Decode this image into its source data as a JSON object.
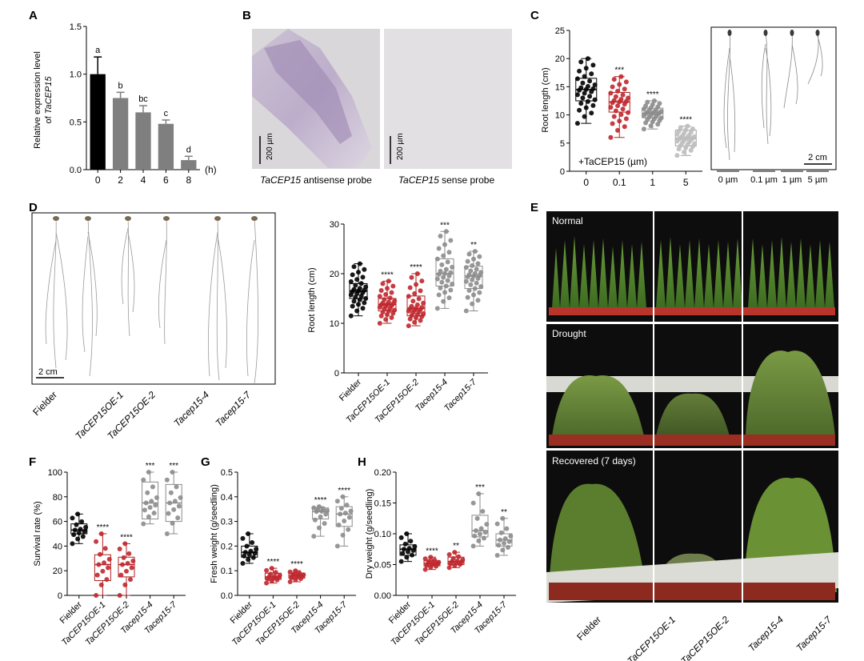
{
  "panels": {
    "A": {
      "letter": "A",
      "ylabel_line1": "Relative expression level",
      "ylabel_prefix": "of ",
      "ylabel_gene": "TaCEP15",
      "xunit": "(h)",
      "yticks": [
        "0.0",
        "0.5",
        "1.0",
        "1.5"
      ],
      "chart_data": {
        "type": "bar",
        "categories": [
          "0",
          "2",
          "4",
          "6",
          "8"
        ],
        "values": [
          1.0,
          0.75,
          0.6,
          0.48,
          0.1
        ],
        "errors": [
          0.18,
          0.06,
          0.07,
          0.04,
          0.04
        ],
        "sig": [
          "a",
          "b",
          "bc",
          "c",
          "d"
        ],
        "colors": [
          "#000000",
          "#7f7f7f",
          "#7f7f7f",
          "#7f7f7f",
          "#7f7f7f"
        ],
        "ylim": [
          0,
          1.5
        ]
      }
    },
    "B": {
      "letter": "B",
      "scale_label": "200 µm",
      "left_caption_gene": "TaCEP15",
      "left_caption_rest": " antisense probe",
      "right_caption_gene": "TaCEP15",
      "right_caption_rest": " sense probe"
    },
    "C": {
      "letter": "C",
      "ylabel": "Root length (cm)",
      "treatment": "+TaCEP15 (µm)",
      "yticks": [
        "0",
        "5",
        "10",
        "15",
        "20",
        "25"
      ],
      "photo_scale": "2 cm",
      "photo_labels": [
        "0 µm",
        "0.1 µm",
        "1 µm",
        "5 µm"
      ],
      "chart_data": {
        "type": "box",
        "categories": [
          "0",
          "0.1",
          "1",
          "5"
        ],
        "boxes": [
          {
            "min": 8.5,
            "q1": 12.5,
            "median": 14.5,
            "q3": 16.5,
            "max": 20,
            "sig": "",
            "color": "#000000",
            "fill": "#000000"
          },
          {
            "min": 6,
            "q1": 10.5,
            "median": 12.3,
            "q3": 14,
            "max": 16.8,
            "sig": "***",
            "color": "#b22222",
            "fill": "#c0272d"
          },
          {
            "min": 7.5,
            "q1": 9.5,
            "median": 10.3,
            "q3": 11.2,
            "max": 12.5,
            "sig": "****",
            "color": "#8c8c8c",
            "fill": "#8c8c8c"
          },
          {
            "min": 2.8,
            "q1": 4.5,
            "median": 5.8,
            "q3": 7.3,
            "max": 8,
            "sig": "****",
            "color": "#a0a0a0",
            "fill": "#bdbdbd"
          }
        ],
        "ylim": [
          0,
          25
        ]
      }
    },
    "D": {
      "letter": "D",
      "ylabel": "Root length (cm)",
      "yticks": [
        "0",
        "10",
        "20",
        "30"
      ],
      "photo_scale": "2 cm",
      "photo_labels": [
        "Fielder",
        "TaCEP15OE-1",
        "TaCEP15OE-2",
        "Tacep15-4",
        "Tacep15-7"
      ],
      "chart_data": {
        "type": "box",
        "categories": [
          "Fielder",
          "TaCEP15OE-1",
          "TaCEP15OE-2",
          "Tacep15-4",
          "Tacep15-7"
        ],
        "boxes": [
          {
            "min": 11.5,
            "q1": 15,
            "median": 16.5,
            "q3": 18,
            "max": 22,
            "sig": "",
            "color": "#000000",
            "fill": "#000000"
          },
          {
            "min": 10,
            "q1": 12.5,
            "median": 13.8,
            "q3": 15,
            "max": 18.5,
            "sig": "****",
            "color": "#b22222",
            "fill": "#c0272d"
          },
          {
            "min": 9.5,
            "q1": 11.5,
            "median": 13,
            "q3": 15.5,
            "max": 20,
            "sig": "****",
            "color": "#b22222",
            "fill": "#c0272d"
          },
          {
            "min": 13,
            "q1": 17.5,
            "median": 20,
            "q3": 23,
            "max": 28.5,
            "sig": "***",
            "color": "#8c8c8c",
            "fill": "#8c8c8c"
          },
          {
            "min": 12.5,
            "q1": 17,
            "median": 19.5,
            "q3": 21.5,
            "max": 24.5,
            "sig": "**",
            "color": "#8c8c8c",
            "fill": "#8c8c8c"
          }
        ],
        "ylim": [
          0,
          30
        ]
      }
    },
    "E": {
      "letter": "E",
      "rows": [
        "Normal",
        "Drought",
        "Recovered (7 days)"
      ],
      "columns": [
        "Fielder",
        "TaCEP15OE-1",
        "TaCEP15OE-2",
        "Tacep15-4",
        "Tacep15-7"
      ]
    },
    "F": {
      "letter": "F",
      "ylabel": "Survival rate (%)",
      "yticks": [
        "0",
        "20",
        "40",
        "60",
        "80",
        "100"
      ],
      "chart_data": {
        "type": "box",
        "categories": [
          "Fielder",
          "TaCEP15OE-1",
          "TaCEP15OE-2",
          "Tacep15-4",
          "Tacep15-7"
        ],
        "boxes": [
          {
            "min": 42,
            "q1": 50,
            "median": 53,
            "q3": 58,
            "max": 66,
            "sig": "",
            "color": "#000000",
            "fill": "#000000"
          },
          {
            "min": 0,
            "q1": 12,
            "median": 25,
            "q3": 33,
            "max": 50,
            "sig": "****",
            "color": "#b22222",
            "fill": "#c0272d"
          },
          {
            "min": 0,
            "q1": 15,
            "median": 25,
            "q3": 31,
            "max": 42,
            "sig": "****",
            "color": "#b22222",
            "fill": "#c0272d"
          },
          {
            "min": 58,
            "q1": 62,
            "median": 75,
            "q3": 92,
            "max": 100,
            "sig": "***",
            "color": "#8c8c8c",
            "fill": "#8c8c8c"
          },
          {
            "min": 50,
            "q1": 60,
            "median": 75,
            "q3": 90,
            "max": 100,
            "sig": "***",
            "color": "#8c8c8c",
            "fill": "#8c8c8c"
          }
        ],
        "ylim": [
          0,
          100
        ]
      }
    },
    "G": {
      "letter": "G",
      "ylabel": "Fresh weight (g/seedling)",
      "yticks": [
        "0.0",
        "0.1",
        "0.2",
        "0.3",
        "0.4",
        "0.5"
      ],
      "chart_data": {
        "type": "box",
        "categories": [
          "Fielder",
          "TaCEP15OE-1",
          "TaCEP15OE-2",
          "Tacep15-4",
          "Tacep15-7"
        ],
        "boxes": [
          {
            "min": 0.13,
            "q1": 0.155,
            "median": 0.175,
            "q3": 0.2,
            "max": 0.25,
            "sig": "",
            "color": "#000000",
            "fill": "#000000"
          },
          {
            "min": 0.05,
            "q1": 0.065,
            "median": 0.075,
            "q3": 0.09,
            "max": 0.11,
            "sig": "****",
            "color": "#b22222",
            "fill": "#c0272d"
          },
          {
            "min": 0.055,
            "q1": 0.07,
            "median": 0.08,
            "q3": 0.09,
            "max": 0.1,
            "sig": "****",
            "color": "#b22222",
            "fill": "#c0272d"
          },
          {
            "min": 0.24,
            "q1": 0.31,
            "median": 0.34,
            "q3": 0.355,
            "max": 0.36,
            "sig": "****",
            "color": "#8c8c8c",
            "fill": "#8c8c8c"
          },
          {
            "min": 0.2,
            "q1": 0.28,
            "median": 0.33,
            "q3": 0.36,
            "max": 0.4,
            "sig": "****",
            "color": "#8c8c8c",
            "fill": "#8c8c8c"
          }
        ],
        "ylim": [
          0,
          0.5
        ]
      }
    },
    "H": {
      "letter": "H",
      "ylabel": "Dry weight (g/seedling)",
      "yticks": [
        "0.00",
        "0.05",
        "0.10",
        "0.15",
        "0.20"
      ],
      "chart_data": {
        "type": "box",
        "categories": [
          "Fielder",
          "TaCEP15OE-1",
          "TaCEP15OE-2",
          "Tacep15-4",
          "Tacep15-7"
        ],
        "boxes": [
          {
            "min": 0.055,
            "q1": 0.065,
            "median": 0.075,
            "q3": 0.082,
            "max": 0.1,
            "sig": "",
            "color": "#000000",
            "fill": "#000000"
          },
          {
            "min": 0.042,
            "q1": 0.048,
            "median": 0.052,
            "q3": 0.056,
            "max": 0.062,
            "sig": "****",
            "color": "#b22222",
            "fill": "#c0272d"
          },
          {
            "min": 0.045,
            "q1": 0.05,
            "median": 0.055,
            "q3": 0.062,
            "max": 0.07,
            "sig": "**",
            "color": "#b22222",
            "fill": "#c0272d"
          },
          {
            "min": 0.08,
            "q1": 0.095,
            "median": 0.105,
            "q3": 0.13,
            "max": 0.165,
            "sig": "***",
            "color": "#8c8c8c",
            "fill": "#8c8c8c"
          },
          {
            "min": 0.065,
            "q1": 0.08,
            "median": 0.09,
            "q3": 0.1,
            "max": 0.125,
            "sig": "**",
            "color": "#8c8c8c",
            "fill": "#8c8c8c"
          }
        ],
        "ylim": [
          0,
          0.2
        ]
      }
    }
  }
}
